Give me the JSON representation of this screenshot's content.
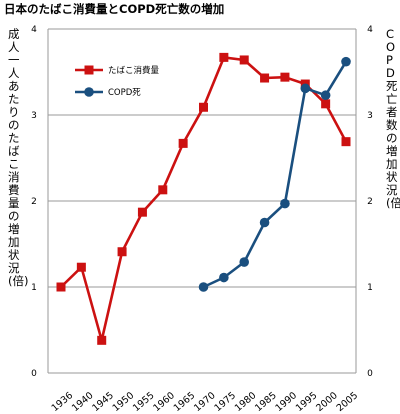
{
  "title": "日本のたばこ消費量とCOPD死亡数の増加",
  "chart_data": {
    "type": "line",
    "title": "日本のたばこ消費量とCOPD死亡数の増加",
    "ylabel_left": "成人一人あたりのたばこ消費量の増加状況(倍)",
    "ylabel_right": "COPD死亡者数の増加状況(倍)",
    "categories": [
      "1936",
      "1940",
      "1945",
      "1950",
      "1955",
      "1960",
      "1965",
      "1970",
      "1975",
      "1980",
      "1985",
      "1990",
      "1995",
      "2000",
      "2005"
    ],
    "yticks": [
      "0",
      "1",
      "2",
      "3",
      "4"
    ],
    "ylim": [
      0,
      4
    ],
    "grid": true,
    "legend_position": "top-left",
    "series": [
      {
        "name": "たばこ消費量",
        "color": "#cc1111",
        "marker": "square",
        "values": [
          1.0,
          1.23,
          0.38,
          1.41,
          1.87,
          2.13,
          2.67,
          3.09,
          3.67,
          3.64,
          3.43,
          3.44,
          3.36,
          3.13,
          2.69
        ]
      },
      {
        "name": "COPD死",
        "color": "#1a4f7f",
        "marker": "circle",
        "values": [
          null,
          null,
          null,
          null,
          null,
          null,
          null,
          1.0,
          1.11,
          1.29,
          1.75,
          1.97,
          3.31,
          3.23,
          3.62
        ]
      }
    ]
  }
}
